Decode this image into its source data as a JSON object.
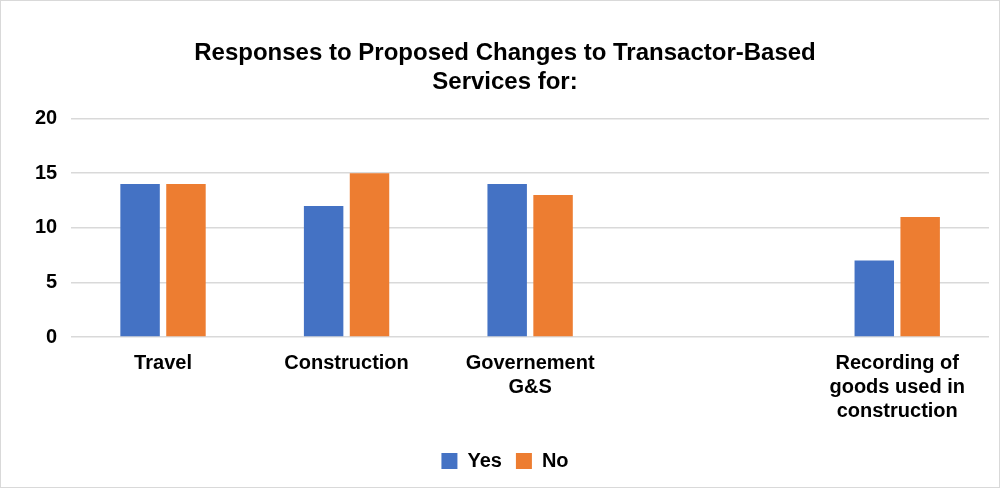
{
  "chart_data": {
    "type": "bar",
    "title": "Responses to Proposed Changes to Transactor-Based Services for:",
    "categories": [
      "Travel",
      "Construction",
      "Governement G&S",
      null,
      "Recording of goods used in construction"
    ],
    "series": [
      {
        "name": "Yes",
        "color": "#4472c4",
        "values": [
          14,
          12,
          14,
          null,
          7
        ]
      },
      {
        "name": "No",
        "color": "#ed7d31",
        "values": [
          14,
          15,
          13,
          null,
          11
        ]
      }
    ],
    "ylim": [
      0,
      20
    ],
    "yticks": [
      0,
      5,
      10,
      15,
      20
    ],
    "grid": "y",
    "legend": "bottom"
  }
}
